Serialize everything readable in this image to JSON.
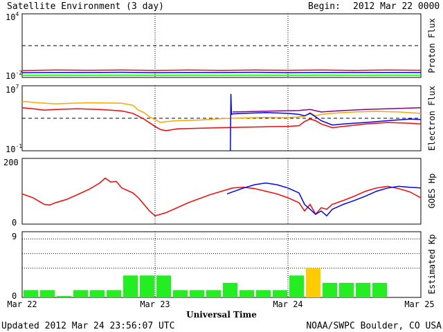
{
  "header": {
    "title": "Satellite Environment (3 day)",
    "begin_label": "Begin:",
    "begin_value": "2012 Mar 22 0000 UTC"
  },
  "footer": {
    "updated": "Updated 2012 Mar 24 23:56:07 UTC",
    "credit": "NOAA/SWPC Boulder, CO USA"
  },
  "x_axis": {
    "title": "Universal Time",
    "range_hours": [
      0,
      72
    ],
    "ticks": [
      {
        "label": "Mar 22",
        "hour": 0
      },
      {
        "label": "Mar 23",
        "hour": 24
      },
      {
        "label": "Mar 24",
        "hour": 48
      },
      {
        "label": "Mar 25",
        "hour": 72
      }
    ]
  },
  "chart_data": [
    {
      "type": "line",
      "ylabel": "Proton Flux",
      "yscale": "log",
      "ylim": [
        0.01,
        10000
      ],
      "tick_labels": [
        {
          "base": "10",
          "exp": "4"
        },
        {
          "base": "10",
          "exp": "-2"
        }
      ],
      "threshold": 10,
      "x": [
        0,
        6,
        12,
        18,
        24,
        30,
        36,
        42,
        48,
        54,
        60,
        66,
        72
      ],
      "series": [
        {
          "color": "#ff0000",
          "values": [
            0.045,
            0.05,
            0.048,
            0.05,
            0.046,
            0.05,
            0.047,
            0.05,
            0.048,
            0.05,
            0.046,
            0.05,
            0.048
          ]
        },
        {
          "color": "#0000ff",
          "values": [
            0.028,
            0.03,
            0.029,
            0.031,
            0.028,
            0.03,
            0.029,
            0.031,
            0.028,
            0.03,
            0.029,
            0.03,
            0.029
          ]
        },
        {
          "color": "#00ff00",
          "values": [
            0.016,
            0.017,
            0.016,
            0.017,
            0.016,
            0.017,
            0.016,
            0.017,
            0.016,
            0.017,
            0.016,
            0.017,
            0.016
          ]
        }
      ]
    },
    {
      "type": "line",
      "ylabel": "Electron Flux",
      "yscale": "log",
      "ylim": [
        0.1,
        10000000
      ],
      "tick_labels": [
        {
          "base": "10",
          "exp": "7"
        },
        {
          "base": "10",
          "exp": "-1"
        }
      ],
      "threshold": 1000,
      "series": [
        {
          "color": "#ffa500",
          "x": [
            0,
            3,
            6,
            9,
            12,
            16,
            18,
            20,
            21,
            22,
            23,
            24,
            25,
            26,
            28,
            32,
            36,
            40,
            44,
            48,
            50,
            51,
            52,
            53,
            54,
            56,
            58,
            60,
            64,
            68,
            72
          ],
          "values": [
            120000,
            80000,
            60000,
            70000,
            80000,
            75000,
            70000,
            40000,
            10000,
            5000,
            1500,
            700,
            300,
            400,
            500,
            600,
            900,
            1100,
            1300,
            1200,
            1500,
            1800,
            5000,
            2000,
            3000,
            4000,
            5000,
            6000,
            7000,
            6000,
            4000
          ]
        },
        {
          "color": "#ff0000",
          "x": [
            0,
            2,
            4,
            6,
            10,
            14,
            18,
            20,
            22,
            24,
            25,
            26,
            28,
            32,
            36,
            40,
            44,
            48,
            50,
            51,
            52,
            53,
            54,
            56,
            58,
            62,
            66,
            70,
            72
          ],
          "values": [
            20000,
            15000,
            10000,
            12000,
            15000,
            12000,
            8000,
            4000,
            800,
            100,
            40,
            30,
            50,
            60,
            70,
            80,
            90,
            100,
            120,
            400,
            800,
            500,
            200,
            70,
            100,
            200,
            300,
            250,
            200
          ]
        },
        {
          "color": "#0000ff",
          "x": [
            37.6,
            37.7,
            37.8,
            38,
            40,
            44,
            48,
            50,
            51,
            52,
            53,
            54,
            56,
            58,
            62,
            66,
            70,
            72
          ],
          "values": [
            0.1,
            1000000,
            3000,
            3500,
            4000,
            5000,
            4000,
            3000,
            2000,
            4000,
            1500,
            500,
            150,
            200,
            300,
            500,
            800,
            700
          ]
        },
        {
          "color": "#800080",
          "x": [
            38,
            42,
            46,
            50,
            52,
            54,
            58,
            62,
            66,
            70,
            72
          ],
          "values": [
            6000,
            7000,
            8000,
            9000,
            12000,
            6000,
            9000,
            12000,
            15000,
            18000,
            20000
          ]
        }
      ]
    },
    {
      "type": "line",
      "ylabel": "GOES Hp",
      "ylim": [
        0,
        200
      ],
      "tick_labels": [
        "200",
        "0"
      ],
      "series": [
        {
          "color": "#ff0000",
          "x": [
            0,
            2,
            3,
            4,
            5,
            6,
            8,
            10,
            12,
            13,
            14,
            15,
            16,
            17,
            18,
            20,
            21,
            22,
            23,
            24,
            26,
            30,
            34,
            38,
            40,
            42,
            44,
            46,
            48,
            50,
            51,
            52,
            53,
            54,
            55,
            56,
            58,
            60,
            62,
            64,
            66,
            68,
            70,
            72
          ],
          "values": [
            92,
            80,
            70,
            60,
            58,
            65,
            75,
            90,
            105,
            115,
            125,
            140,
            128,
            130,
            110,
            95,
            80,
            60,
            40,
            25,
            35,
            65,
            90,
            110,
            112,
            108,
            100,
            92,
            80,
            65,
            40,
            60,
            30,
            50,
            45,
            60,
            72,
            85,
            100,
            110,
            115,
            108,
            98,
            80
          ]
        },
        {
          "color": "#0000ff",
          "x": [
            37,
            38,
            40,
            42,
            44,
            46,
            48,
            50,
            51,
            52,
            53,
            54,
            55,
            56,
            58,
            60,
            62,
            64,
            66,
            68,
            70,
            72
          ],
          "values": [
            92,
            98,
            110,
            120,
            125,
            120,
            110,
            95,
            60,
            45,
            30,
            40,
            25,
            45,
            60,
            72,
            85,
            100,
            110,
            115,
            112,
            110
          ]
        }
      ]
    },
    {
      "type": "bar",
      "ylabel": "Estimated Kp",
      "ylim": [
        0,
        9
      ],
      "tick_labels": [
        "9",
        "0"
      ],
      "grid_lines": [
        4,
        6,
        8
      ],
      "x_start_hours": [
        0,
        3,
        6,
        9,
        12,
        15,
        18,
        21,
        24,
        27,
        30,
        33,
        36,
        39,
        42,
        45,
        48,
        51,
        54,
        57,
        60,
        63,
        66,
        69
      ],
      "values": [
        1,
        1,
        0.2,
        1,
        1,
        1,
        3,
        3,
        3,
        1,
        1,
        1,
        2,
        1,
        1,
        1,
        3,
        4,
        2,
        2,
        2,
        2,
        null,
        null
      ],
      "colors": {
        "normal": "#22ee22",
        "moderate": "#ffcc00"
      },
      "moderate_threshold": 4
    }
  ]
}
